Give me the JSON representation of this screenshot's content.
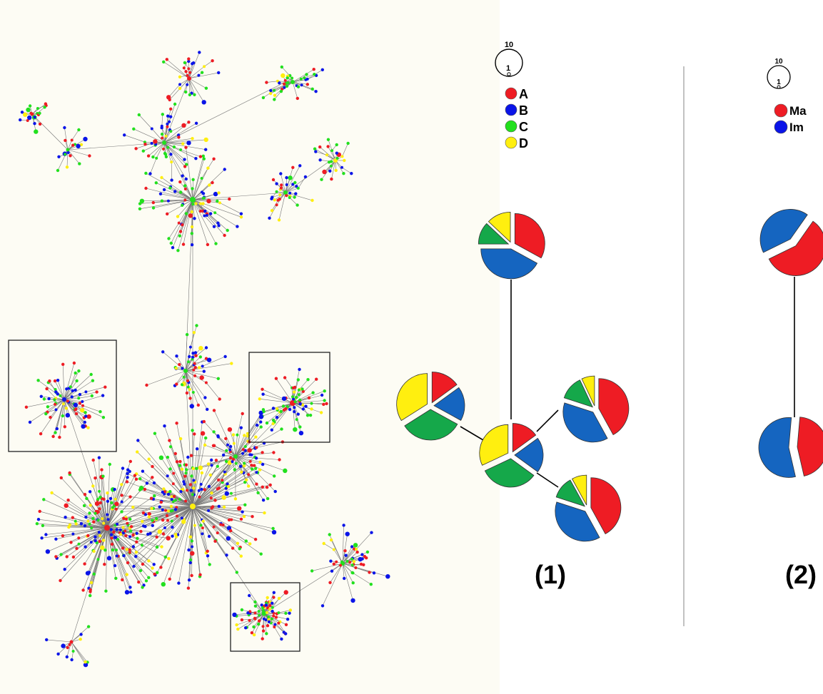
{
  "colors": {
    "A": "#ee1c24",
    "B": "#1565c0",
    "C": "#15a84a",
    "D": "#ffef0f",
    "legend_B": "#0a14e8",
    "legend_C": "#22e01e",
    "network_bg": "#fdfcf4",
    "edge": "#777777",
    "frame": "#222222"
  },
  "panel1": {
    "label": "(1)",
    "size_legend": {
      "large": "10",
      "small": "1"
    },
    "legend": [
      {
        "key": "A",
        "label": "A"
      },
      {
        "key": "B",
        "label": "B"
      },
      {
        "key": "C",
        "label": "C"
      },
      {
        "key": "D",
        "label": "D"
      }
    ],
    "pies": [
      {
        "name": "top",
        "A": 0.33,
        "B": 0.42,
        "C": 0.12,
        "D": 0.13
      },
      {
        "name": "left",
        "A": 0.15,
        "B": 0.18,
        "C": 0.33,
        "D": 0.34
      },
      {
        "name": "center",
        "A": 0.15,
        "B": 0.2,
        "C": 0.33,
        "D": 0.32
      },
      {
        "name": "right",
        "A": 0.42,
        "B": 0.38,
        "C": 0.13,
        "D": 0.07
      },
      {
        "name": "bottom",
        "A": 0.42,
        "B": 0.38,
        "C": 0.12,
        "D": 0.08
      }
    ]
  },
  "panel2": {
    "label": "(2)",
    "size_legend": {
      "large": "10",
      "small": "1"
    },
    "legend": [
      {
        "key": "A",
        "label": "Ma"
      },
      {
        "key": "legend_B",
        "label": "Im"
      }
    ],
    "pies": [
      {
        "name": "top",
        "Ma": 0.58,
        "Im": 0.42
      },
      {
        "name": "bottom",
        "Ma": 0.45,
        "Im": 0.55
      }
    ]
  }
}
